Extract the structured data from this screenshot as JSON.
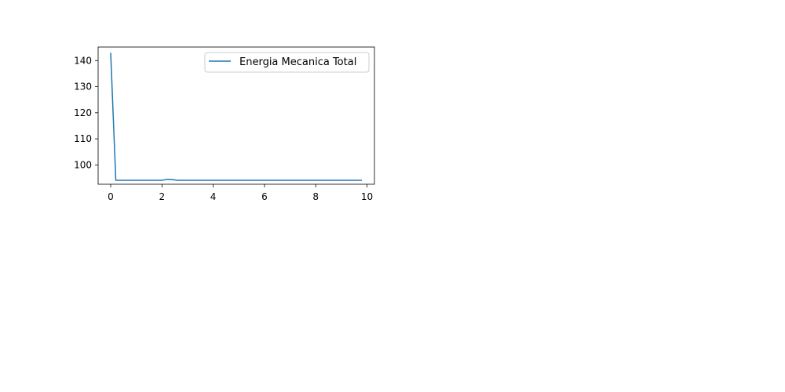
{
  "chart_data": {
    "type": "line",
    "title": "",
    "xlabel": "",
    "ylabel": "",
    "xlim": [
      -0.49,
      10.29
    ],
    "ylim": [
      92.6,
      145.2
    ],
    "xticks": [
      0,
      2,
      4,
      6,
      8,
      10
    ],
    "yticks": [
      100,
      110,
      120,
      130,
      140
    ],
    "grid": false,
    "legend_position": "top-right",
    "series": [
      {
        "name": "Energia Mecanica Total",
        "color": "#1f77b4",
        "x": [
          0,
          0.2,
          0.4,
          0.6,
          0.8,
          1.0,
          1.2,
          1.4,
          1.6,
          1.8,
          2.0,
          2.2,
          2.4,
          2.6,
          2.8,
          3.0,
          3.5,
          4.0,
          4.5,
          5.0,
          5.5,
          6.0,
          6.5,
          7.0,
          7.5,
          8.0,
          8.5,
          9.0,
          9.5,
          9.8
        ],
        "y": [
          143,
          94.1,
          94.1,
          94.1,
          94.1,
          94.1,
          94.1,
          94.1,
          94.1,
          94.1,
          94.1,
          94.5,
          94.4,
          94.1,
          94.1,
          94.1,
          94.1,
          94.1,
          94.1,
          94.1,
          94.1,
          94.1,
          94.1,
          94.1,
          94.1,
          94.1,
          94.1,
          94.1,
          94.1,
          94.1
        ]
      }
    ]
  }
}
